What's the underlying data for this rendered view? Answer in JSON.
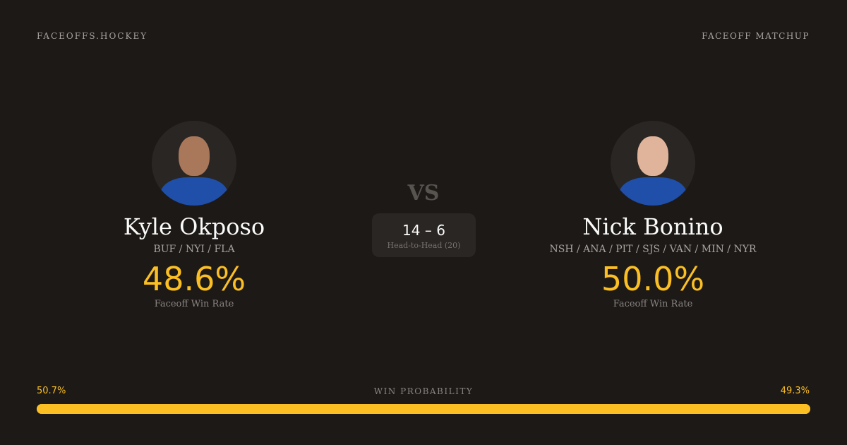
{
  "header": {
    "brand": "FACEOFFS.HOCKEY",
    "section": "FACEOFF MATCHUP"
  },
  "players": [
    {
      "name": "Kyle Okposo",
      "teams": "BUF / NYI / FLA",
      "win_rate": "48.6%",
      "win_rate_label": "Faceoff Win Rate"
    },
    {
      "name": "Nick Bonino",
      "teams": "NSH / ANA / PIT / SJS / VAN / MIN / NYR",
      "win_rate": "50.0%",
      "win_rate_label": "Faceoff Win Rate"
    }
  ],
  "vs": "VS",
  "head_to_head": {
    "score": "14 – 6",
    "label": "Head-to-Head (20)"
  },
  "win_probability": {
    "title": "WIN PROBABILITY",
    "left": "50.7%",
    "right": "49.3%",
    "left_value": 50.7,
    "right_value": 49.3,
    "color": "#fbbf24"
  }
}
